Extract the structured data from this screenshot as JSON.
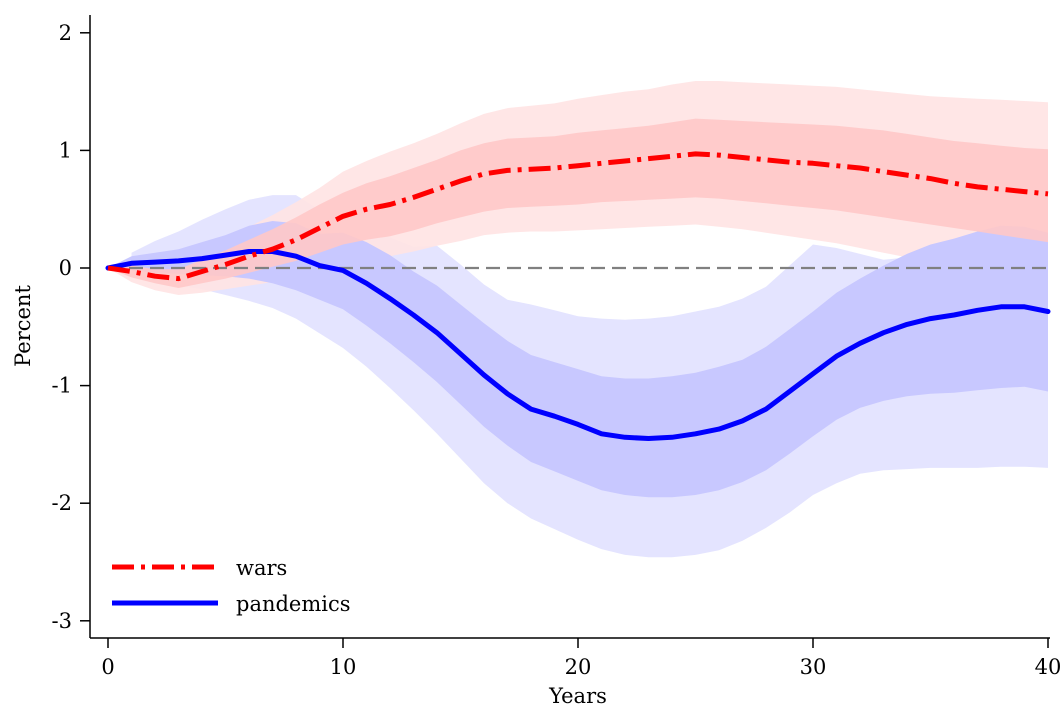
{
  "chart_data": {
    "type": "line",
    "xlabel": "Years",
    "ylabel": "Percent",
    "xlim": [
      0,
      40
    ],
    "ylim": [
      -3,
      2
    ],
    "xticks": [
      0,
      10,
      20,
      30,
      40
    ],
    "yticks": [
      -3,
      -2,
      -1,
      0,
      1,
      2
    ],
    "grid": false,
    "legend_position": "bottom-left",
    "zero_reference_line": true,
    "x": [
      0,
      1,
      2,
      3,
      4,
      5,
      6,
      7,
      8,
      9,
      10,
      11,
      12,
      13,
      14,
      15,
      16,
      17,
      18,
      19,
      20,
      21,
      22,
      23,
      24,
      25,
      26,
      27,
      28,
      29,
      30,
      31,
      32,
      33,
      34,
      35,
      36,
      37,
      38,
      39,
      40
    ],
    "series": [
      {
        "name": "wars",
        "color": "#ff0000",
        "line_style": "dash-dot",
        "band_inner_color": "#ffc8c8",
        "band_outer_color": "#ffe4e4",
        "values": [
          0,
          -0.03,
          -0.07,
          -0.09,
          -0.03,
          0.03,
          0.1,
          0.16,
          0.24,
          0.34,
          0.44,
          0.5,
          0.54,
          0.6,
          0.67,
          0.74,
          0.8,
          0.83,
          0.84,
          0.85,
          0.87,
          0.89,
          0.91,
          0.93,
          0.95,
          0.97,
          0.96,
          0.94,
          0.92,
          0.9,
          0.89,
          0.87,
          0.85,
          0.82,
          0.79,
          0.76,
          0.72,
          0.69,
          0.67,
          0.65,
          0.63
        ],
        "inner_lower": [
          0,
          -0.08,
          -0.13,
          -0.17,
          -0.13,
          -0.09,
          -0.04,
          0.01,
          0.06,
          0.13,
          0.2,
          0.24,
          0.27,
          0.32,
          0.38,
          0.43,
          0.48,
          0.51,
          0.52,
          0.53,
          0.54,
          0.56,
          0.57,
          0.58,
          0.59,
          0.6,
          0.59,
          0.57,
          0.55,
          0.53,
          0.51,
          0.49,
          0.46,
          0.43,
          0.4,
          0.37,
          0.34,
          0.31,
          0.28,
          0.25,
          0.22
        ],
        "inner_upper": [
          0,
          0.02,
          -0.01,
          -0.01,
          0.07,
          0.15,
          0.24,
          0.33,
          0.43,
          0.54,
          0.64,
          0.72,
          0.78,
          0.85,
          0.92,
          1.0,
          1.06,
          1.1,
          1.11,
          1.12,
          1.15,
          1.17,
          1.19,
          1.21,
          1.24,
          1.27,
          1.26,
          1.25,
          1.24,
          1.23,
          1.22,
          1.21,
          1.19,
          1.17,
          1.14,
          1.11,
          1.08,
          1.06,
          1.04,
          1.02,
          1.01
        ],
        "outer_lower": [
          0,
          -0.12,
          -0.19,
          -0.23,
          -0.21,
          -0.18,
          -0.15,
          -0.12,
          -0.08,
          -0.03,
          0.03,
          0.07,
          0.1,
          0.14,
          0.19,
          0.23,
          0.28,
          0.3,
          0.31,
          0.31,
          0.32,
          0.33,
          0.34,
          0.35,
          0.36,
          0.37,
          0.35,
          0.33,
          0.3,
          0.27,
          0.24,
          0.21,
          0.17,
          0.13,
          0.09,
          0.05,
          0.01,
          -0.04,
          -0.09,
          -0.14,
          -0.18
        ],
        "outer_upper": [
          0,
          0.06,
          0.05,
          0.05,
          0.15,
          0.25,
          0.35,
          0.45,
          0.56,
          0.68,
          0.82,
          0.91,
          0.99,
          1.06,
          1.14,
          1.23,
          1.31,
          1.36,
          1.38,
          1.4,
          1.44,
          1.47,
          1.5,
          1.52,
          1.56,
          1.59,
          1.59,
          1.58,
          1.57,
          1.56,
          1.55,
          1.54,
          1.52,
          1.5,
          1.48,
          1.46,
          1.45,
          1.44,
          1.43,
          1.42,
          1.41
        ]
      },
      {
        "name": "pandemics",
        "color": "#0000ff",
        "line_style": "solid",
        "band_inner_color": "#c8c8ff",
        "band_outer_color": "#e4e4ff",
        "values": [
          0,
          0.04,
          0.05,
          0.06,
          0.08,
          0.11,
          0.14,
          0.14,
          0.1,
          0.02,
          -0.02,
          -0.13,
          -0.26,
          -0.4,
          -0.55,
          -0.73,
          -0.91,
          -1.07,
          -1.2,
          -1.26,
          -1.33,
          -1.41,
          -1.44,
          -1.45,
          -1.44,
          -1.41,
          -1.37,
          -1.3,
          -1.2,
          -1.05,
          -0.9,
          -0.75,
          -0.64,
          -0.55,
          -0.48,
          -0.43,
          -0.4,
          -0.36,
          -0.33,
          -0.33,
          -0.37
        ],
        "inner_lower": [
          0,
          -0.02,
          -0.04,
          -0.05,
          -0.06,
          -0.07,
          -0.09,
          -0.13,
          -0.19,
          -0.27,
          -0.35,
          -0.49,
          -0.64,
          -0.8,
          -0.97,
          -1.16,
          -1.35,
          -1.51,
          -1.65,
          -1.73,
          -1.81,
          -1.89,
          -1.93,
          -1.95,
          -1.95,
          -1.93,
          -1.89,
          -1.82,
          -1.72,
          -1.58,
          -1.43,
          -1.29,
          -1.19,
          -1.13,
          -1.09,
          -1.07,
          -1.06,
          -1.04,
          -1.02,
          -1.01,
          -1.05
        ],
        "inner_upper": [
          0,
          0.1,
          0.13,
          0.16,
          0.22,
          0.28,
          0.36,
          0.4,
          0.38,
          0.29,
          0.3,
          0.22,
          0.11,
          -0.03,
          -0.15,
          -0.31,
          -0.47,
          -0.62,
          -0.74,
          -0.8,
          -0.86,
          -0.92,
          -0.94,
          -0.94,
          -0.92,
          -0.89,
          -0.84,
          -0.78,
          -0.67,
          -0.52,
          -0.37,
          -0.21,
          -0.09,
          0.02,
          0.12,
          0.2,
          0.25,
          0.31,
          0.36,
          0.35,
          0.3
        ]
      }
    ],
    "pandemics_outer_band": {
      "x": [
        1,
        2,
        3,
        4,
        5,
        6,
        7,
        8,
        10,
        11,
        12,
        13,
        14,
        15,
        16,
        17,
        18,
        19,
        20,
        21,
        22,
        23,
        24,
        25,
        26,
        27,
        28,
        29,
        30,
        31,
        32,
        33,
        34,
        35,
        36,
        37,
        38,
        39,
        40
      ],
      "lower": [
        -0.06,
        -0.11,
        -0.15,
        -0.18,
        -0.23,
        -0.28,
        -0.34,
        -0.43,
        -0.68,
        -0.84,
        -1.02,
        -1.21,
        -1.41,
        -1.62,
        -1.83,
        -2.0,
        -2.13,
        -2.22,
        -2.31,
        -2.39,
        -2.44,
        -2.46,
        -2.46,
        -2.44,
        -2.4,
        -2.32,
        -2.21,
        -2.08,
        -1.93,
        -1.83,
        -1.75,
        -1.72,
        -1.71,
        -1.7,
        -1.7,
        -1.7,
        -1.69,
        -1.69,
        -1.7
      ],
      "upper": [
        0.13,
        0.23,
        0.31,
        0.41,
        0.5,
        0.58,
        0.62,
        0.62,
        0.37,
        0.33,
        0.26,
        0.18,
        0.19,
        0.03,
        -0.14,
        -0.27,
        -0.31,
        -0.36,
        -0.41,
        -0.43,
        -0.44,
        -0.43,
        -0.41,
        -0.37,
        -0.33,
        -0.26,
        -0.16,
        0.02,
        0.2,
        0.17,
        0.12,
        0.07,
        0.09,
        0.1,
        0.09,
        0.07,
        0.1,
        0.12,
        0.1
      ]
    }
  }
}
